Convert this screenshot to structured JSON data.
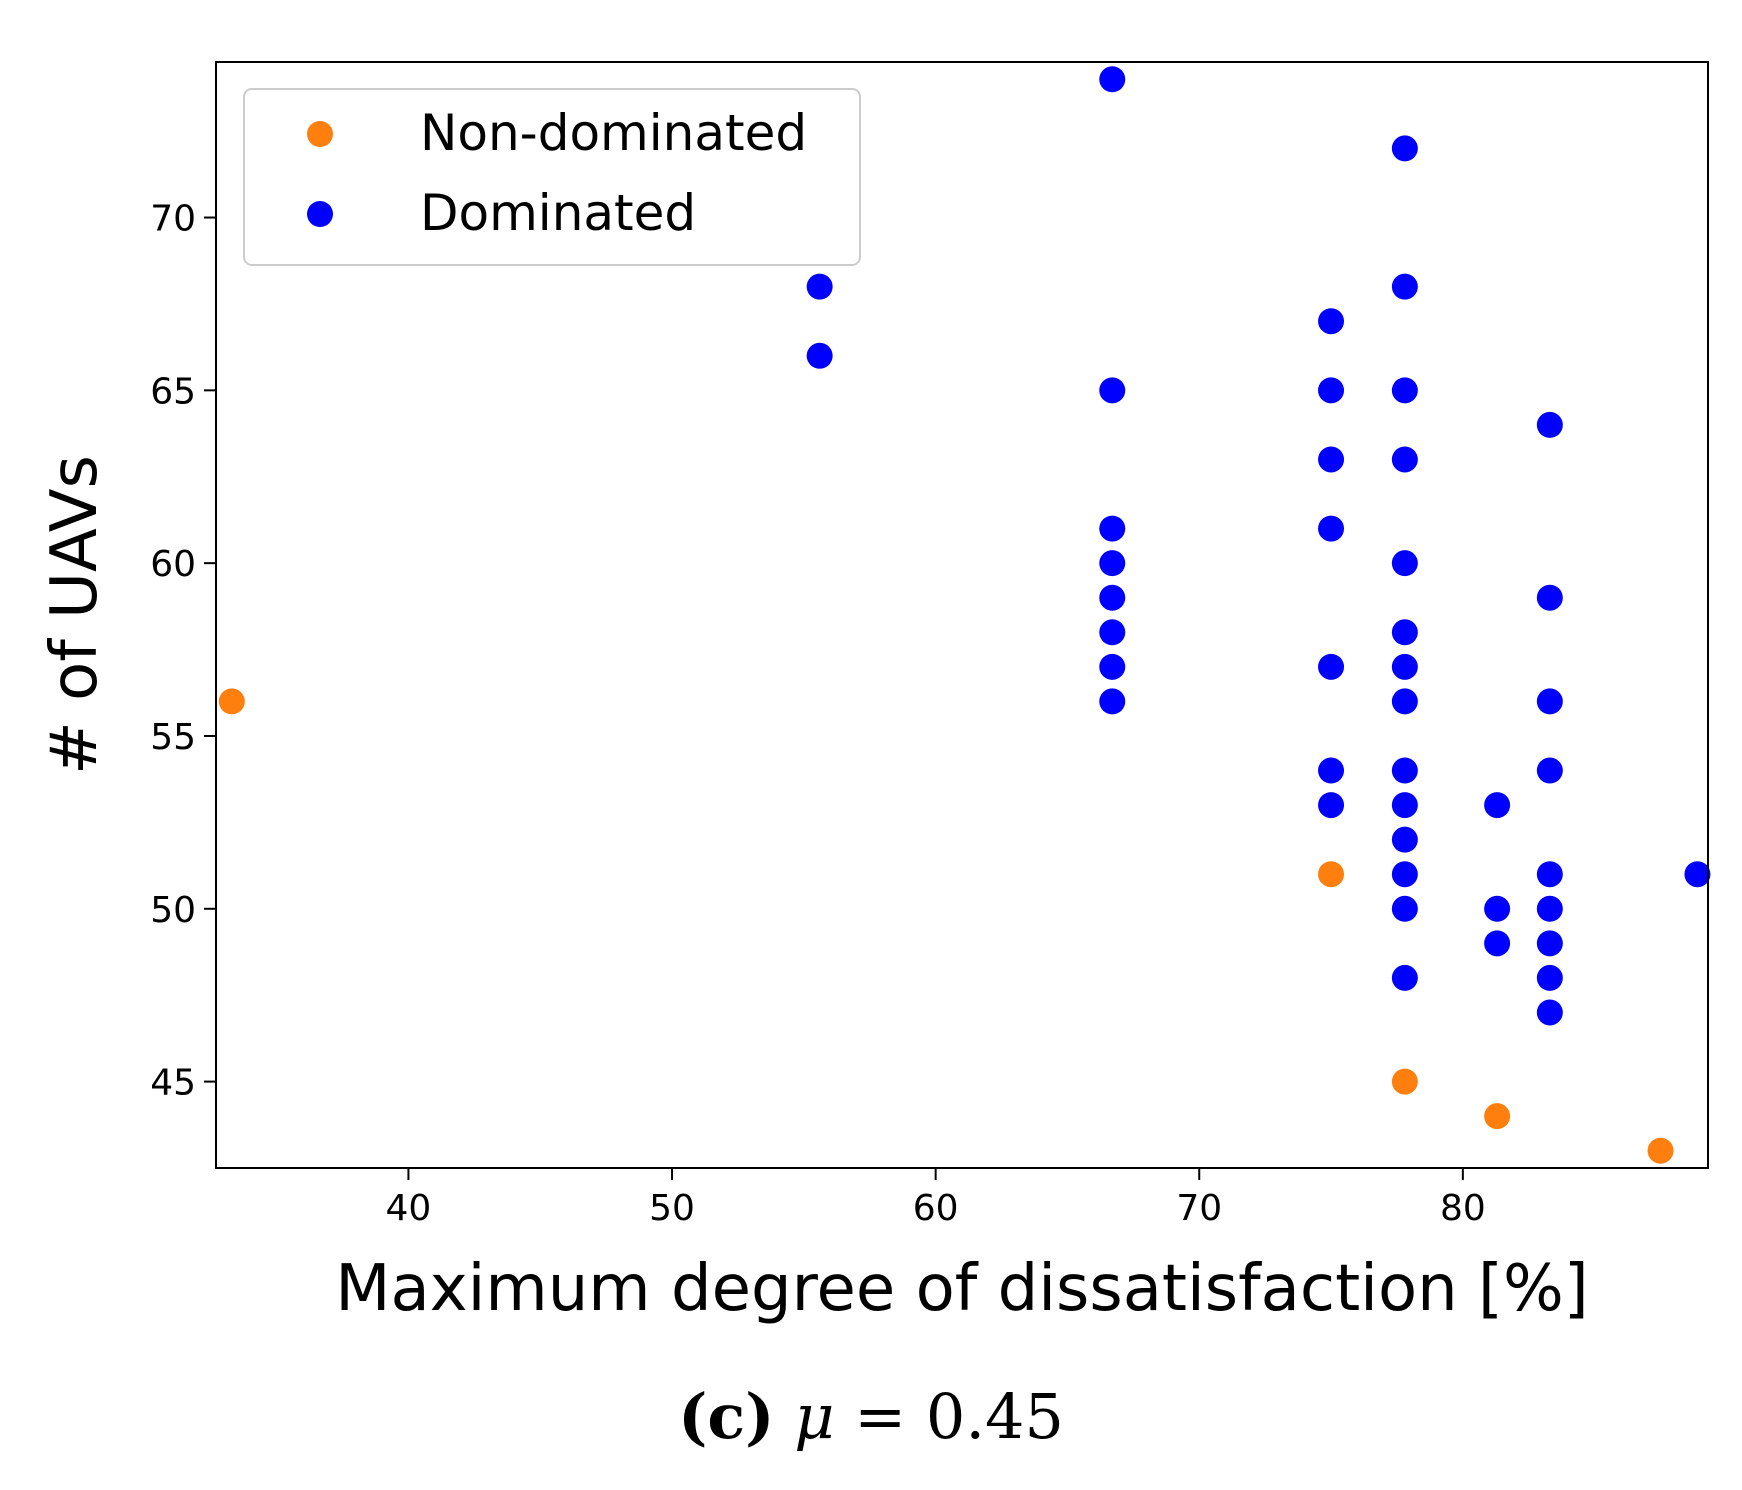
{
  "chart_data": {
    "type": "scatter",
    "xlabel": "Maximum degree of dissatisfaction [%]",
    "ylabel": "# of UAVs",
    "xlim": [
      32.7,
      89.3
    ],
    "ylim": [
      42.5,
      74.5
    ],
    "xticks": [
      40,
      50,
      60,
      70,
      80
    ],
    "yticks": [
      45,
      50,
      55,
      60,
      65,
      70
    ],
    "grid": false,
    "legend_position": "top-left",
    "series": [
      {
        "name": "Non-dominated",
        "color": "#ff7f0e",
        "points": [
          [
            33.3,
            56
          ],
          [
            75,
            51
          ],
          [
            77.8,
            45
          ],
          [
            81.3,
            44
          ],
          [
            87.5,
            43
          ]
        ]
      },
      {
        "name": "Dominated",
        "color": "#0000ff",
        "points": [
          [
            66.7,
            74
          ],
          [
            55.6,
            68
          ],
          [
            55.6,
            66
          ],
          [
            66.7,
            65
          ],
          [
            66.7,
            61
          ],
          [
            66.7,
            60
          ],
          [
            66.7,
            59
          ],
          [
            66.7,
            58
          ],
          [
            66.7,
            57
          ],
          [
            66.7,
            56
          ],
          [
            75,
            67
          ],
          [
            75,
            65
          ],
          [
            75,
            63
          ],
          [
            75,
            61
          ],
          [
            75,
            57
          ],
          [
            75,
            54
          ],
          [
            75,
            53
          ],
          [
            77.8,
            72
          ],
          [
            77.8,
            68
          ],
          [
            77.8,
            65
          ],
          [
            77.8,
            63
          ],
          [
            77.8,
            60
          ],
          [
            77.8,
            58
          ],
          [
            77.8,
            57
          ],
          [
            77.8,
            56
          ],
          [
            77.8,
            54
          ],
          [
            77.8,
            53
          ],
          [
            77.8,
            52
          ],
          [
            77.8,
            51
          ],
          [
            77.8,
            50
          ],
          [
            77.8,
            48
          ],
          [
            81.3,
            53
          ],
          [
            81.3,
            50
          ],
          [
            81.3,
            49
          ],
          [
            83.3,
            64
          ],
          [
            83.3,
            59
          ],
          [
            83.3,
            56
          ],
          [
            83.3,
            54
          ],
          [
            83.3,
            51
          ],
          [
            83.3,
            50
          ],
          [
            83.3,
            49
          ],
          [
            83.3,
            48
          ],
          [
            83.3,
            47
          ],
          [
            88.9,
            51
          ]
        ]
      }
    ]
  },
  "caption": {
    "label": "(c)",
    "symbol": "μ",
    "equals": "=",
    "value": "0.45"
  }
}
